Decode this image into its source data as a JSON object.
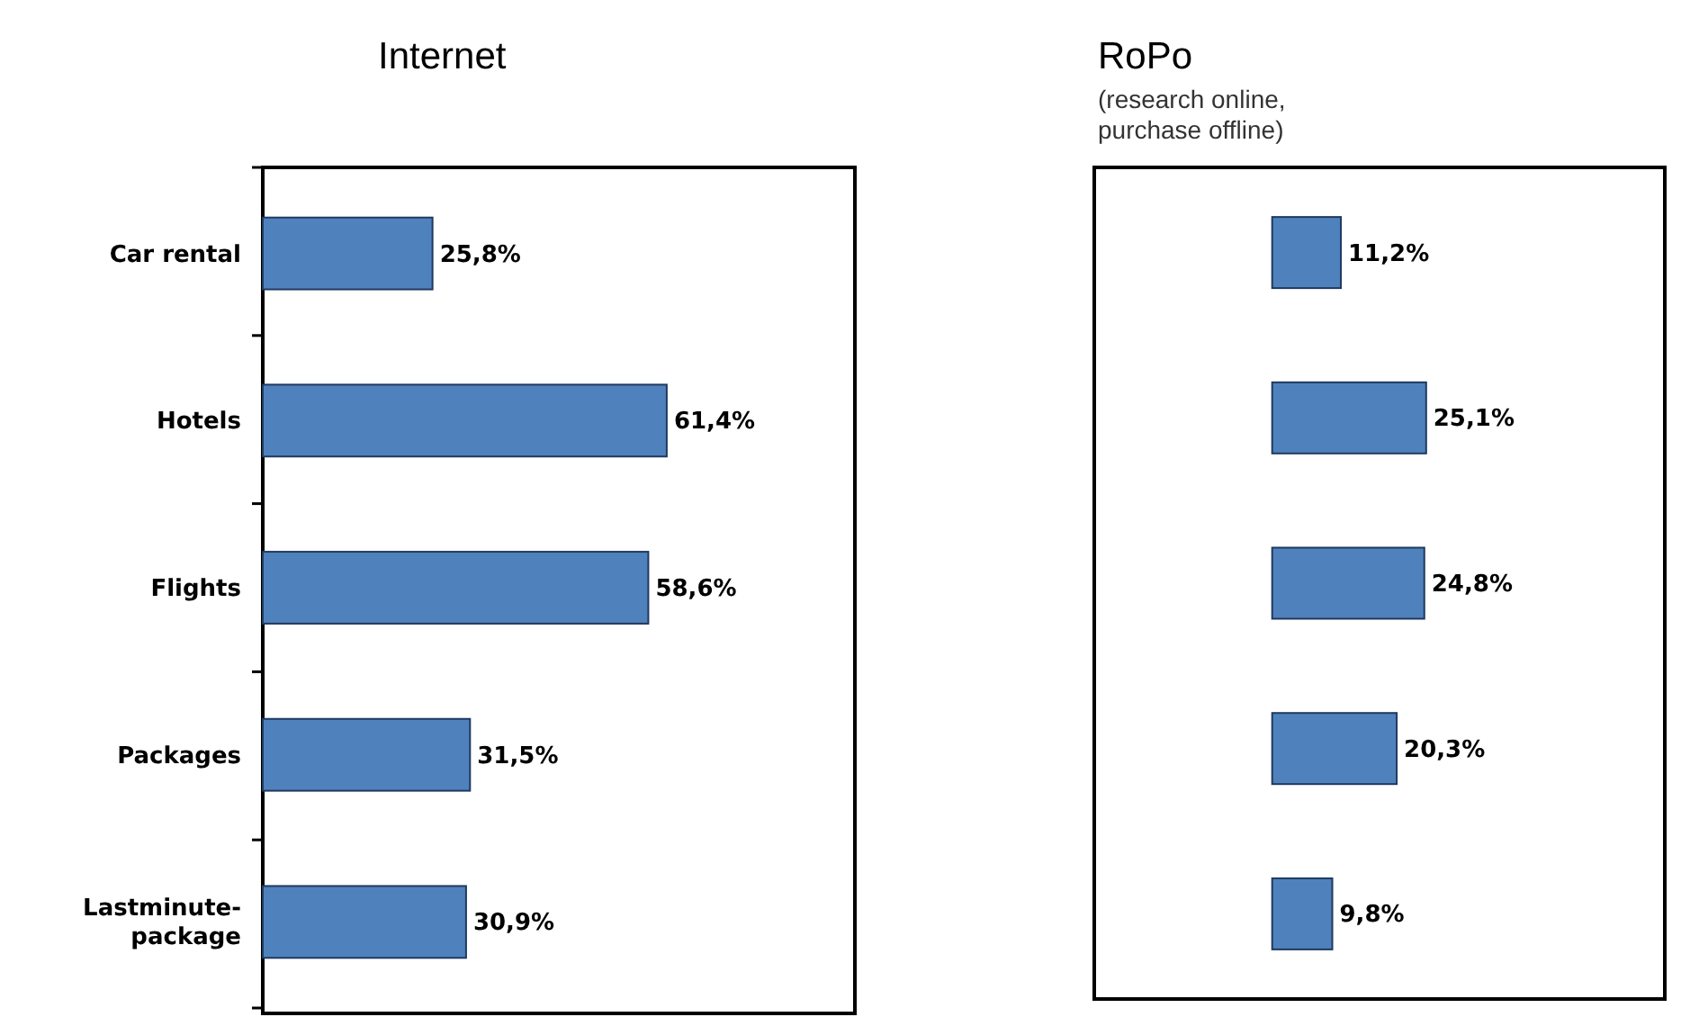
{
  "chart_data": [
    {
      "type": "bar",
      "orientation": "horizontal",
      "title": "Internet",
      "categories": [
        "Car rental",
        "Hotels",
        "Flights",
        "Packages",
        "Lastminute-package"
      ],
      "values": [
        25.8,
        61.4,
        58.6,
        31.5,
        30.9
      ],
      "value_labels": [
        "25,8%",
        "61,4%",
        "58,6%",
        "31,5%",
        "30,9%"
      ],
      "color": "#4f81bd",
      "xlim": [
        0,
        90
      ],
      "tick_labels": "y"
    },
    {
      "type": "bar",
      "orientation": "horizontal",
      "title": "RoPo",
      "subtitle": "(research online, purchase offline)",
      "categories": [
        null,
        null,
        null,
        null,
        null
      ],
      "values": [
        11.2,
        25.1,
        24.8,
        20.3,
        9.8
      ],
      "value_labels": [
        "11,2%",
        "25,1%",
        "24,8%",
        "20,3%",
        "9,8%"
      ],
      "color": "#4f81bd",
      "xlim": [
        -29,
        64
      ],
      "tick_labels": false
    }
  ]
}
